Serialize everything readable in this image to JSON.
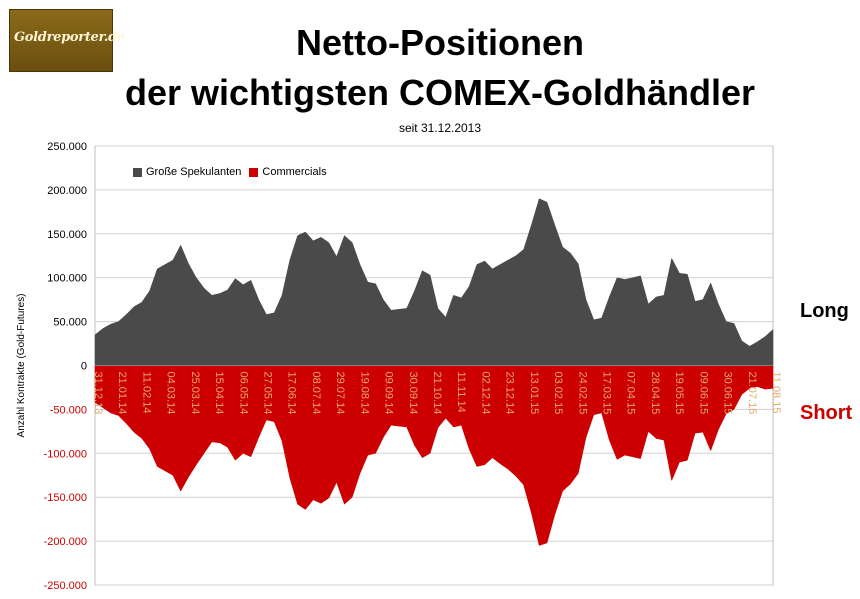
{
  "logo": {
    "text": "Goldreporter.de"
  },
  "title_line1": "Netto-Positionen",
  "title_line2": "der wichtigsten COMEX-Goldhändler",
  "subtitle": "seit 31.12.2013",
  "side_labels": {
    "long": "Long",
    "short": "Short"
  },
  "colors": {
    "long": "#4a4a4a",
    "short": "#cc0000",
    "grid": "#d0d0d0",
    "tick_red": "#cc0000",
    "xtick": "#e6a86b"
  },
  "chart_data": {
    "type": "area",
    "ylabel": "Anzahl Kontrakte  (Gold-Futures)",
    "ylim": [
      -250000,
      250000
    ],
    "yticks": [
      250000,
      200000,
      150000,
      100000,
      50000,
      0,
      -50000,
      -100000,
      -150000,
      -200000,
      -250000
    ],
    "ytick_labels": [
      "250.000",
      "200.000",
      "150.000",
      "100.000",
      "50.000",
      "0",
      "-50.000",
      "-100.000",
      "-150.000",
      "-200.000",
      "-250.000"
    ],
    "x_tick_labels": [
      "31.12.13",
      "21.01.14",
      "11.02.14",
      "04.03.14",
      "25.03.14",
      "15.04.14",
      "06.05.14",
      "27.05.14",
      "17.06.14",
      "08.07.14",
      "29.07.14",
      "19.08.14",
      "09.09.14",
      "30.09.14",
      "21.10.14",
      "11.11.14",
      "02.12.14",
      "23.12.14",
      "13.01.15",
      "03.02.15",
      "24.02.15",
      "17.03.15",
      "07.04.15",
      "28.04.15",
      "19.05.15",
      "09.06.15",
      "30.06.15",
      "21.07.15",
      "11.08.15"
    ],
    "grid": true,
    "legend_position": "top-left",
    "series": [
      {
        "name": "Große Spekulanten",
        "values": [
          35000,
          42000,
          47000,
          50000,
          58000,
          67000,
          72000,
          85000,
          110000,
          115000,
          120000,
          137000,
          116000,
          100000,
          88000,
          80000,
          82000,
          86000,
          99000,
          92000,
          97000,
          75000,
          58000,
          60000,
          80000,
          120000,
          148000,
          152000,
          142000,
          146000,
          140000,
          124000,
          148000,
          140000,
          115000,
          95000,
          93000,
          75000,
          63000,
          64000,
          65000,
          85000,
          108000,
          103000,
          65000,
          55000,
          80000,
          77000,
          90000,
          115000,
          119000,
          110000,
          115000,
          120000,
          125000,
          132000,
          160000,
          190000,
          186000,
          160000,
          135000,
          128000,
          116000,
          75000,
          52000,
          54000,
          78000,
          100000,
          98000,
          100000,
          102000,
          70000,
          78000,
          80000,
          122000,
          105000,
          104000,
          73000,
          75000,
          94000,
          70000,
          50000,
          48000,
          28000,
          22000,
          27000,
          33000,
          41000
        ]
      },
      {
        "name": "Commercials",
        "values": [
          -42000,
          -48000,
          -54000,
          -57000,
          -66000,
          -76000,
          -83000,
          -95000,
          -115000,
          -120000,
          -125000,
          -143000,
          -127000,
          -113000,
          -100000,
          -87000,
          -88000,
          -93000,
          -108000,
          -100000,
          -104000,
          -82000,
          -62000,
          -64000,
          -86000,
          -128000,
          -158000,
          -164000,
          -153000,
          -157000,
          -151000,
          -133000,
          -158000,
          -150000,
          -123000,
          -102000,
          -100000,
          -82000,
          -68000,
          -69000,
          -70000,
          -91000,
          -105000,
          -100000,
          -71000,
          -60000,
          -70000,
          -68000,
          -95000,
          -115000,
          -113000,
          -105000,
          -112000,
          -118000,
          -126000,
          -136000,
          -168000,
          -205000,
          -202000,
          -170000,
          -143000,
          -135000,
          -123000,
          -82000,
          -56000,
          -54000,
          -85000,
          -107000,
          -102000,
          -104000,
          -106000,
          -75000,
          -83000,
          -85000,
          -131000,
          -110000,
          -108000,
          -77000,
          -76000,
          -97000,
          -73000,
          -55000,
          -50000,
          -33000,
          -26000,
          -24000,
          -27000,
          -26000
        ]
      }
    ]
  }
}
